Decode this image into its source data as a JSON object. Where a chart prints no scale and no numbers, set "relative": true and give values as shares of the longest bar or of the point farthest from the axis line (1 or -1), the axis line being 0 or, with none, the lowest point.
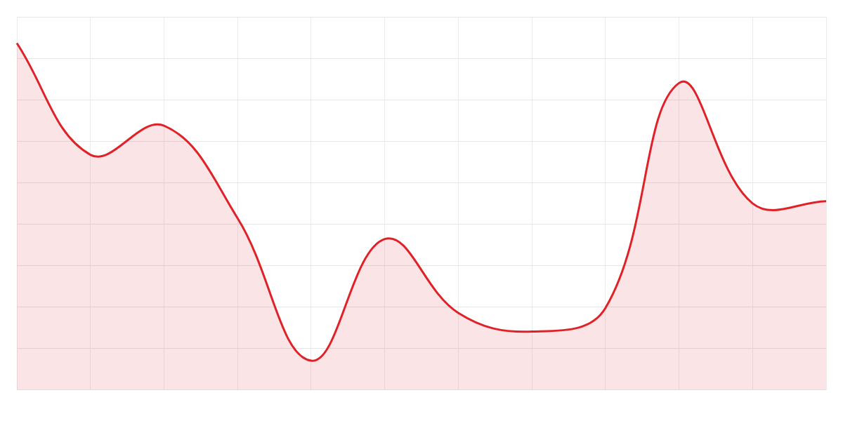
{
  "chart_data": {
    "type": "area",
    "relative": true,
    "grid": true,
    "marker": "none",
    "line_style": "solid",
    "categories": [
      null,
      null,
      null,
      null,
      null,
      null,
      null,
      null,
      null,
      null,
      null,
      null
    ],
    "series": [
      {
        "color": "#e02228",
        "values": [
          1,
          0.678,
          0.762,
          0.495,
          0.084,
          0.435,
          0.222,
          0.168,
          0.236,
          0.885,
          0.538,
          0.544
        ]
      }
    ]
  }
}
